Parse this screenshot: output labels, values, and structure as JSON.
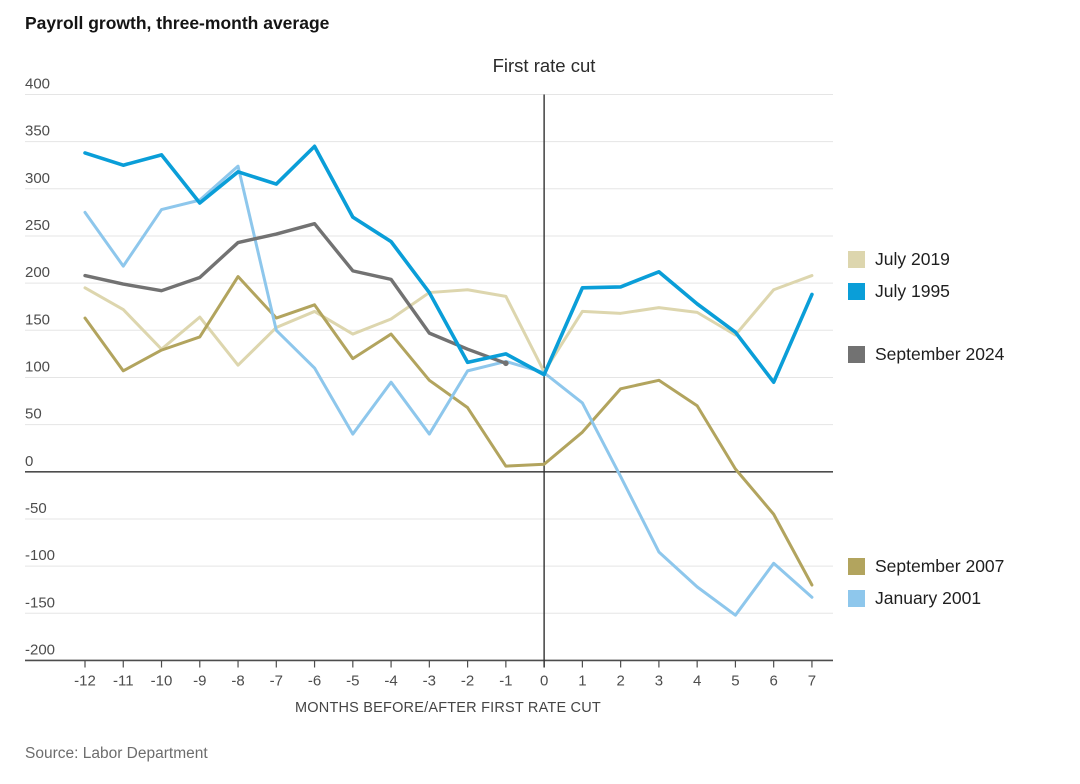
{
  "title": "Payroll growth, three-month average",
  "source": "Source: Labor Department",
  "chart_data": {
    "type": "line",
    "title": "Payroll growth, three-month average",
    "xlabel": "MONTHS BEFORE/AFTER FIRST RATE CUT",
    "ylabel": "",
    "x": [
      -12,
      -11,
      -10,
      -9,
      -8,
      -7,
      -6,
      -5,
      -4,
      -3,
      -2,
      -1,
      0,
      1,
      2,
      3,
      4,
      5,
      6,
      7
    ],
    "ylim": [
      -200,
      400
    ],
    "yticks": [
      400,
      350,
      300,
      250,
      200,
      150,
      100,
      50,
      0,
      -50,
      -100,
      -150,
      -200
    ],
    "grid": true,
    "zero_line": true,
    "rate_cut_x": 0,
    "annotation": {
      "text": "First rate cut",
      "x": 0
    },
    "legend_position": "right",
    "draw_order": [
      0,
      3,
      4,
      2,
      1
    ],
    "series": [
      {
        "name": "July 2019",
        "color": "#ddd6ae",
        "values": [
          195,
          172,
          130,
          164,
          113,
          153,
          170,
          146,
          162,
          190,
          193,
          186,
          106,
          170,
          168,
          174,
          169,
          145,
          193,
          208
        ]
      },
      {
        "name": "July 1995",
        "color": "#0a9ed8",
        "values": [
          338,
          325,
          336,
          285,
          318,
          305,
          345,
          270,
          244,
          190,
          116,
          125,
          103,
          195,
          196,
          212,
          178,
          148,
          95,
          188
        ]
      },
      {
        "name": "September 2024",
        "color": "#727272",
        "end_marker": true,
        "values": [
          208,
          199,
          192,
          206,
          243,
          252,
          263,
          213,
          204,
          147,
          130,
          115,
          null,
          null,
          null,
          null,
          null,
          null,
          null,
          null
        ]
      },
      {
        "name": "September 2007",
        "color": "#b2a45e",
        "values": [
          163,
          107,
          129,
          143,
          207,
          163,
          177,
          120,
          146,
          97,
          68,
          6,
          8,
          42,
          88,
          97,
          70,
          3,
          -45,
          -120
        ]
      },
      {
        "name": "January 2001",
        "color": "#8ec7ec",
        "values": [
          275,
          218,
          278,
          288,
          324,
          150,
          110,
          40,
          95,
          40,
          107,
          117,
          105,
          73,
          -5,
          -85,
          -122,
          -152,
          -97,
          -133
        ]
      }
    ]
  },
  "colors": {
    "gridline": "#e5e5e5",
    "axis": "#4d4d4d",
    "rate_cut_line": "#333333"
  }
}
